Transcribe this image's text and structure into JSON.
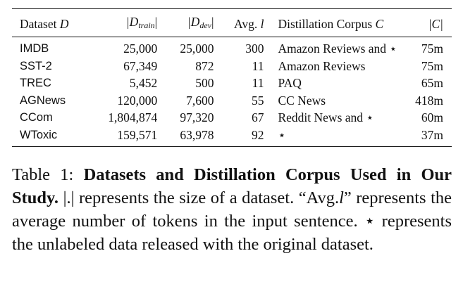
{
  "table": {
    "header": {
      "dataset": "Dataset",
      "dataset_sym": "D",
      "dtrain_open": "|D",
      "dtrain_sub": "train",
      "dtrain_close": "|",
      "ddev_open": "|D",
      "ddev_sub": "dev",
      "ddev_close": "|",
      "avg": "Avg.",
      "avg_sym": "l",
      "corpus": "Distillation Corpus",
      "corpus_sym": "C",
      "csize": "|C|"
    },
    "rows": [
      {
        "dataset": "IMDB",
        "train": "25,000",
        "dev": "25,000",
        "avg": "300",
        "corpus": "Amazon Reviews and ⋆",
        "size": "75m"
      },
      {
        "dataset": "SST-2",
        "train": "67,349",
        "dev": "872",
        "avg": "11",
        "corpus": "Amazon Reviews",
        "size": "75m"
      },
      {
        "dataset": "TREC",
        "train": "5,452",
        "dev": "500",
        "avg": "11",
        "corpus": "PAQ",
        "size": "65m"
      },
      {
        "dataset": "AGNews",
        "train": "120,000",
        "dev": "7,600",
        "avg": "55",
        "corpus": "CC News",
        "size": "418m"
      },
      {
        "dataset": "CCom",
        "train": "1,804,874",
        "dev": "97,320",
        "avg": "67",
        "corpus": "Reddit News and ⋆",
        "size": "60m"
      },
      {
        "dataset": "WToxic",
        "train": "159,571",
        "dev": "63,978",
        "avg": "92",
        "corpus": "⋆",
        "size": "37m"
      }
    ]
  },
  "caption": {
    "label": "Table 1:",
    "title": "Datasets and Distillation Corpus Used in Our Study.",
    "part1": "|.| represents the size of a dataset. “Avg.",
    "sym": "l",
    "part2": "” represents the average number of tokens in the input sentence. ⋆ represents the unlabeled data released with the original dataset."
  }
}
